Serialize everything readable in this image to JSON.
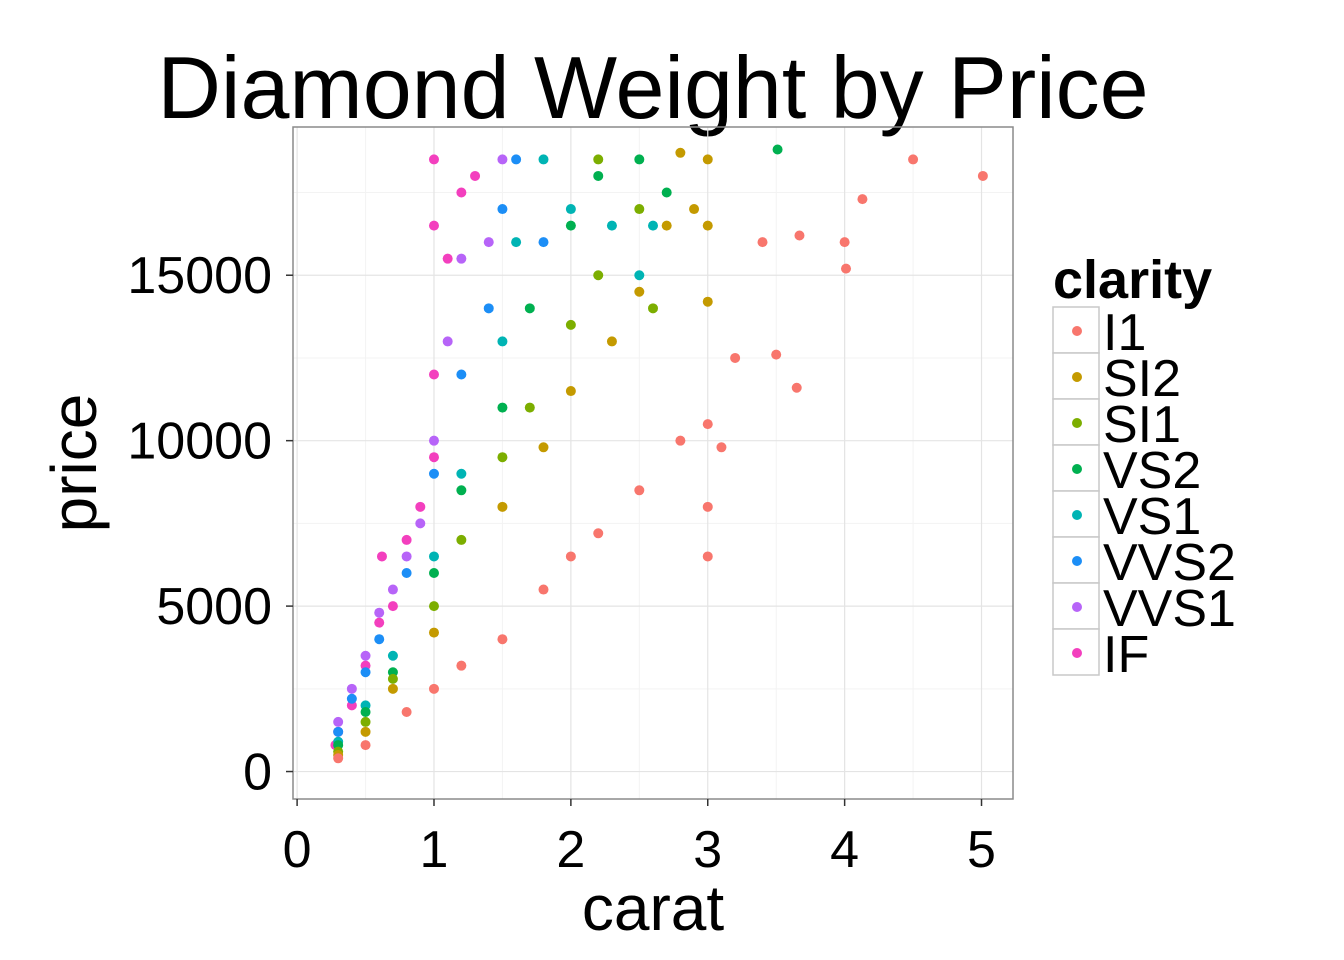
{
  "chart_data": {
    "type": "scatter",
    "title": "Diamond Weight by Price",
    "xlabel": "carat",
    "ylabel": "price",
    "xlim": [
      -0.03,
      5.23
    ],
    "ylim": [
      -830,
      19480
    ],
    "x_ticks": [
      0,
      1,
      2,
      3,
      4,
      5
    ],
    "x_tick_labels": [
      "0",
      "1",
      "2",
      "3",
      "4",
      "5"
    ],
    "y_ticks": [
      0,
      5000,
      10000,
      15000
    ],
    "y_tick_labels": [
      "0",
      "5000",
      "10000",
      "15000"
    ],
    "grid": true,
    "legend": {
      "title": "clarity",
      "position": "right",
      "entries": [
        {
          "label": "I1",
          "color": "#F8766D"
        },
        {
          "label": "SI2",
          "color": "#C49A00"
        },
        {
          "label": "SI1",
          "color": "#7CAE00"
        },
        {
          "label": "VS2",
          "color": "#00B050"
        },
        {
          "label": "VS1",
          "color": "#00B4B4"
        },
        {
          "label": "VVS2",
          "color": "#1C8EF6"
        },
        {
          "label": "VVS1",
          "color": "#B764F8"
        },
        {
          "label": "IF",
          "color": "#F33FBE"
        }
      ]
    },
    "series": [
      {
        "name": "IF",
        "points": [
          [
            0.28,
            800
          ],
          [
            0.3,
            1200
          ],
          [
            0.4,
            2000
          ],
          [
            0.5,
            3200
          ],
          [
            0.6,
            4500
          ],
          [
            0.7,
            5000
          ],
          [
            0.8,
            7000
          ],
          [
            0.9,
            8000
          ],
          [
            1.0,
            9500
          ],
          [
            1.0,
            12000
          ],
          [
            1.0,
            16500
          ],
          [
            1.0,
            18500
          ],
          [
            1.1,
            15500
          ],
          [
            1.2,
            17500
          ],
          [
            1.3,
            18000
          ],
          [
            0.62,
            6500
          ]
        ]
      },
      {
        "name": "VVS1",
        "points": [
          [
            0.3,
            1500
          ],
          [
            0.4,
            2500
          ],
          [
            0.5,
            3500
          ],
          [
            0.6,
            4800
          ],
          [
            0.7,
            5500
          ],
          [
            0.8,
            6500
          ],
          [
            1.0,
            10000
          ],
          [
            1.1,
            13000
          ],
          [
            1.2,
            15500
          ],
          [
            1.4,
            16000
          ],
          [
            1.5,
            18500
          ],
          [
            0.9,
            7500
          ]
        ]
      },
      {
        "name": "VVS2",
        "points": [
          [
            0.3,
            1200
          ],
          [
            0.4,
            2200
          ],
          [
            0.5,
            3000
          ],
          [
            0.6,
            4000
          ],
          [
            0.8,
            6000
          ],
          [
            1.0,
            9000
          ],
          [
            1.2,
            12000
          ],
          [
            1.4,
            14000
          ],
          [
            1.5,
            17000
          ],
          [
            1.6,
            18500
          ],
          [
            1.8,
            16000
          ]
        ]
      },
      {
        "name": "VS1",
        "points": [
          [
            0.3,
            900
          ],
          [
            0.5,
            2000
          ],
          [
            0.7,
            3500
          ],
          [
            1.0,
            6500
          ],
          [
            1.2,
            9000
          ],
          [
            1.5,
            13000
          ],
          [
            1.6,
            16000
          ],
          [
            1.8,
            18500
          ],
          [
            2.0,
            17000
          ],
          [
            2.3,
            16500
          ],
          [
            2.5,
            15000
          ],
          [
            2.6,
            16500
          ]
        ]
      },
      {
        "name": "VS2",
        "points": [
          [
            0.3,
            800
          ],
          [
            0.5,
            1800
          ],
          [
            0.7,
            3000
          ],
          [
            1.0,
            6000
          ],
          [
            1.2,
            8500
          ],
          [
            1.5,
            11000
          ],
          [
            1.7,
            14000
          ],
          [
            2.0,
            16500
          ],
          [
            2.2,
            18000
          ],
          [
            2.5,
            18500
          ],
          [
            2.7,
            17500
          ],
          [
            3.51,
            18800
          ]
        ]
      },
      {
        "name": "SI1",
        "points": [
          [
            0.3,
            600
          ],
          [
            0.5,
            1500
          ],
          [
            0.7,
            2800
          ],
          [
            1.0,
            5000
          ],
          [
            1.2,
            7000
          ],
          [
            1.5,
            9500
          ],
          [
            1.7,
            11000
          ],
          [
            2.0,
            13500
          ],
          [
            2.2,
            15000
          ],
          [
            2.5,
            17000
          ],
          [
            2.6,
            14000
          ],
          [
            2.2,
            18500
          ]
        ]
      },
      {
        "name": "SI2",
        "points": [
          [
            0.3,
            500
          ],
          [
            0.5,
            1200
          ],
          [
            0.7,
            2500
          ],
          [
            1.0,
            4200
          ],
          [
            1.5,
            8000
          ],
          [
            1.8,
            9800
          ],
          [
            2.0,
            11500
          ],
          [
            2.3,
            13000
          ],
          [
            2.5,
            14500
          ],
          [
            2.7,
            16500
          ],
          [
            2.9,
            17000
          ],
          [
            3.0,
            18500
          ],
          [
            3.0,
            16500
          ],
          [
            3.0,
            14200
          ],
          [
            2.8,
            18700
          ]
        ]
      },
      {
        "name": "I1",
        "points": [
          [
            0.3,
            400
          ],
          [
            0.5,
            800
          ],
          [
            0.8,
            1800
          ],
          [
            1.0,
            2500
          ],
          [
            1.2,
            3200
          ],
          [
            1.5,
            4000
          ],
          [
            1.8,
            5500
          ],
          [
            2.0,
            6500
          ],
          [
            2.2,
            7200
          ],
          [
            2.5,
            8500
          ],
          [
            2.8,
            10000
          ],
          [
            3.0,
            6500
          ],
          [
            3.0,
            8000
          ],
          [
            3.0,
            10500
          ],
          [
            3.1,
            9800
          ],
          [
            3.2,
            12500
          ],
          [
            3.4,
            16000
          ],
          [
            3.5,
            12600
          ],
          [
            3.65,
            11600
          ],
          [
            3.67,
            16200
          ],
          [
            4.0,
            16000
          ],
          [
            4.01,
            15200
          ],
          [
            4.13,
            17300
          ],
          [
            4.5,
            18500
          ],
          [
            5.01,
            18000
          ]
        ]
      }
    ]
  }
}
